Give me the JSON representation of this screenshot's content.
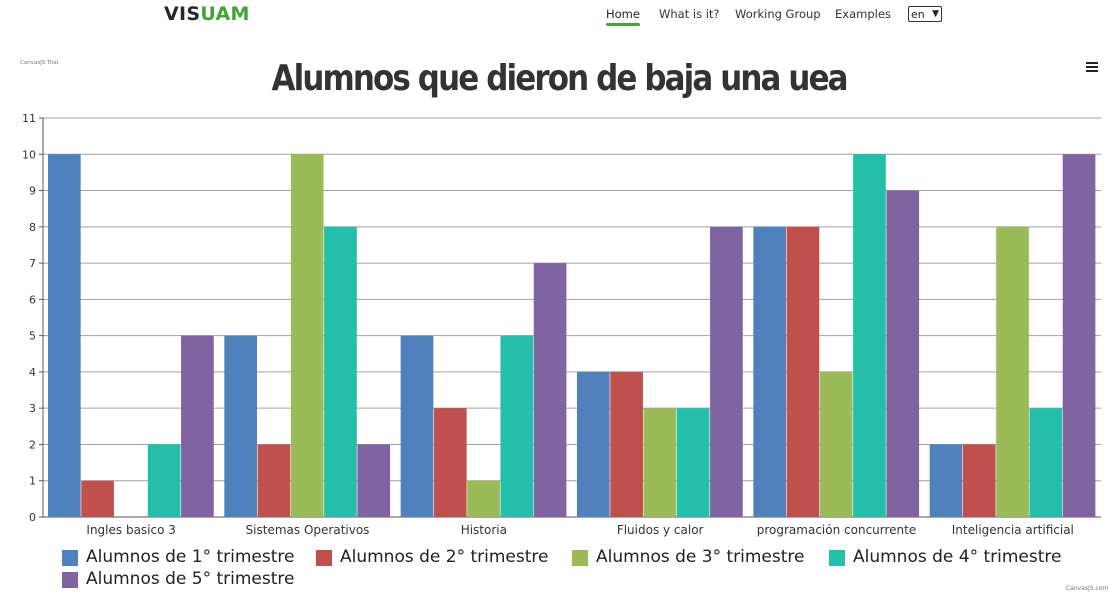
{
  "nav": {
    "logo_part1": "VIS",
    "logo_part2": "UAM",
    "items": [
      "Home",
      "What is it?",
      "Working Group",
      "Examples"
    ],
    "language": "en"
  },
  "chart": {
    "trial_label": "CanvasJS Trial",
    "credits": "CanvasJS.com"
  },
  "chart_data": {
    "type": "bar",
    "title": "Alumnos que dieron de baja una uea",
    "categories": [
      "Ingles basico 3",
      "Sistemas Operativos",
      "Historia",
      "Fluidos y calor",
      "programación concurrente",
      "Inteligencia artificial"
    ],
    "series": [
      {
        "name": "Alumnos de 1° trimestre",
        "color": "#4f81bc",
        "values": [
          10,
          5,
          5,
          4,
          8,
          2
        ]
      },
      {
        "name": "Alumnos de 2° trimestre",
        "color": "#c0504e",
        "values": [
          1,
          2,
          3,
          4,
          8,
          2
        ]
      },
      {
        "name": "Alumnos de 3° trimestre",
        "color": "#9bbb58",
        "values": [
          0,
          10,
          1,
          3,
          4,
          8
        ]
      },
      {
        "name": "Alumnos de 4° trimestre",
        "color": "#23bfaa",
        "values": [
          2,
          8,
          5,
          3,
          10,
          3
        ]
      },
      {
        "name": "Alumnos de 5° trimestre",
        "color": "#8064a1",
        "values": [
          5,
          2,
          7,
          8,
          9,
          10
        ]
      }
    ],
    "ylim": [
      0,
      11
    ],
    "yticks": [
      0,
      1,
      2,
      3,
      4,
      5,
      6,
      7,
      8,
      9,
      10,
      11
    ],
    "grid": true,
    "legend_position": "bottom"
  }
}
